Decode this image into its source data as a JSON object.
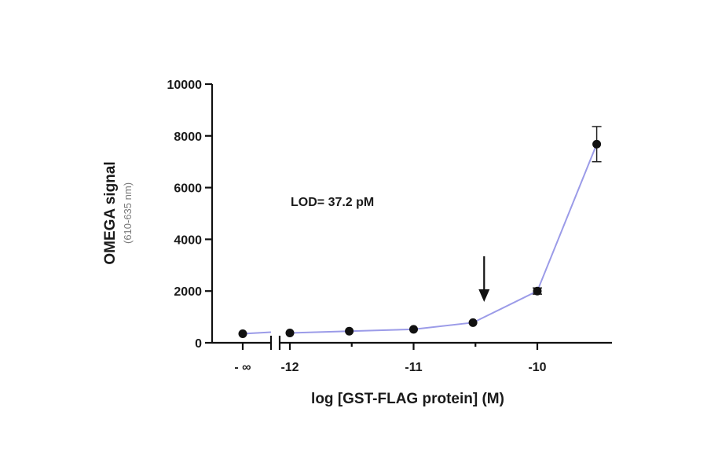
{
  "chart_data": {
    "type": "line",
    "title": "",
    "ylabel": "OMEGA signal",
    "ylabel_sub": "(610-635 nm)",
    "xlabel": "log [GST-FLAG protein] (M)",
    "ylim": [
      0,
      10000
    ],
    "y_ticks": [
      0,
      2000,
      4000,
      6000,
      8000,
      10000
    ],
    "y_tick_labels": [
      "0",
      "2000",
      "4000",
      "6000",
      "8000",
      "10000"
    ],
    "x_break_label": "- ∞",
    "xlim": [
      -12.1,
      -9.45
    ],
    "x_ticks": [
      -12,
      -11,
      -10
    ],
    "x_tick_labels": [
      "-12",
      "-11",
      "-10"
    ],
    "annotation": "LOD=  37.2 pM",
    "lod_x": -10.43,
    "grid": false,
    "line_color": "#9b9be8",
    "marker_color": "#111111",
    "zero_point": {
      "y": 350
    },
    "series": [
      {
        "x": [
          -12,
          -11.52,
          -11,
          -10.52,
          -10,
          -9.52
        ],
        "y": [
          380,
          450,
          520,
          780,
          2000,
          7680
        ],
        "err": [
          0,
          0,
          0,
          0,
          120,
          680
        ]
      }
    ]
  }
}
